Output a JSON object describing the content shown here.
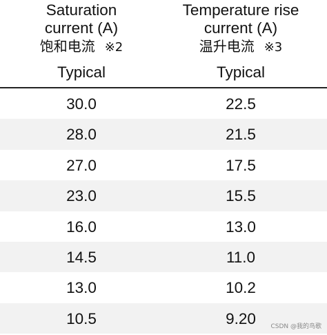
{
  "columns": [
    {
      "title_lines": [
        "Saturation",
        "current (A)"
      ],
      "title_cjk": "饱和电流",
      "note": "※2",
      "sub": "Typical"
    },
    {
      "title_lines": [
        "Temperature rise",
        "current (A)"
      ],
      "title_cjk": "温升电流",
      "note": "※3",
      "sub": "Typical"
    }
  ],
  "rows": [
    [
      "30.0",
      "22.5"
    ],
    [
      "28.0",
      "21.5"
    ],
    [
      "27.0",
      "17.5"
    ],
    [
      "23.0",
      "15.5"
    ],
    [
      "16.0",
      "13.0"
    ],
    [
      "14.5",
      "11.0"
    ],
    [
      "13.0",
      "10.2"
    ],
    [
      "10.5",
      "9.20"
    ]
  ],
  "watermark": "CSDN @我的鸟歌"
}
